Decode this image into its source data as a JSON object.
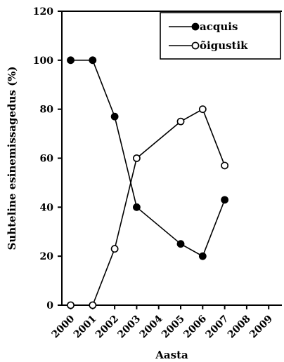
{
  "chart_data": {
    "type": "line",
    "title": "",
    "xlabel": "Aasta",
    "ylabel": "Suhteline esinemissagedus (%)",
    "x_ticks": [
      "2000",
      "2001",
      "2002",
      "2003",
      "2004",
      "2005",
      "2006",
      "2007",
      "2008",
      "2009"
    ],
    "y_ticks": [
      "0",
      "20",
      "40",
      "60",
      "80",
      "100",
      "120"
    ],
    "xlim": [
      1999.6,
      2009.6
    ],
    "ylim": [
      0,
      120
    ],
    "grid": false,
    "legend_position": "top-right",
    "series": [
      {
        "name": "acquis",
        "marker": "filled-circle",
        "color": "#000000",
        "x": [
          2000,
          2001,
          2002,
          2003,
          2005,
          2006,
          2007
        ],
        "y": [
          100,
          100,
          77,
          40,
          25,
          20,
          43
        ]
      },
      {
        "name": "õigustik",
        "marker": "open-circle",
        "color": "#000000",
        "x": [
          2000,
          2001,
          2002,
          2003,
          2005,
          2006,
          2007
        ],
        "y": [
          0,
          0,
          23,
          60,
          75,
          80,
          57
        ]
      }
    ]
  }
}
